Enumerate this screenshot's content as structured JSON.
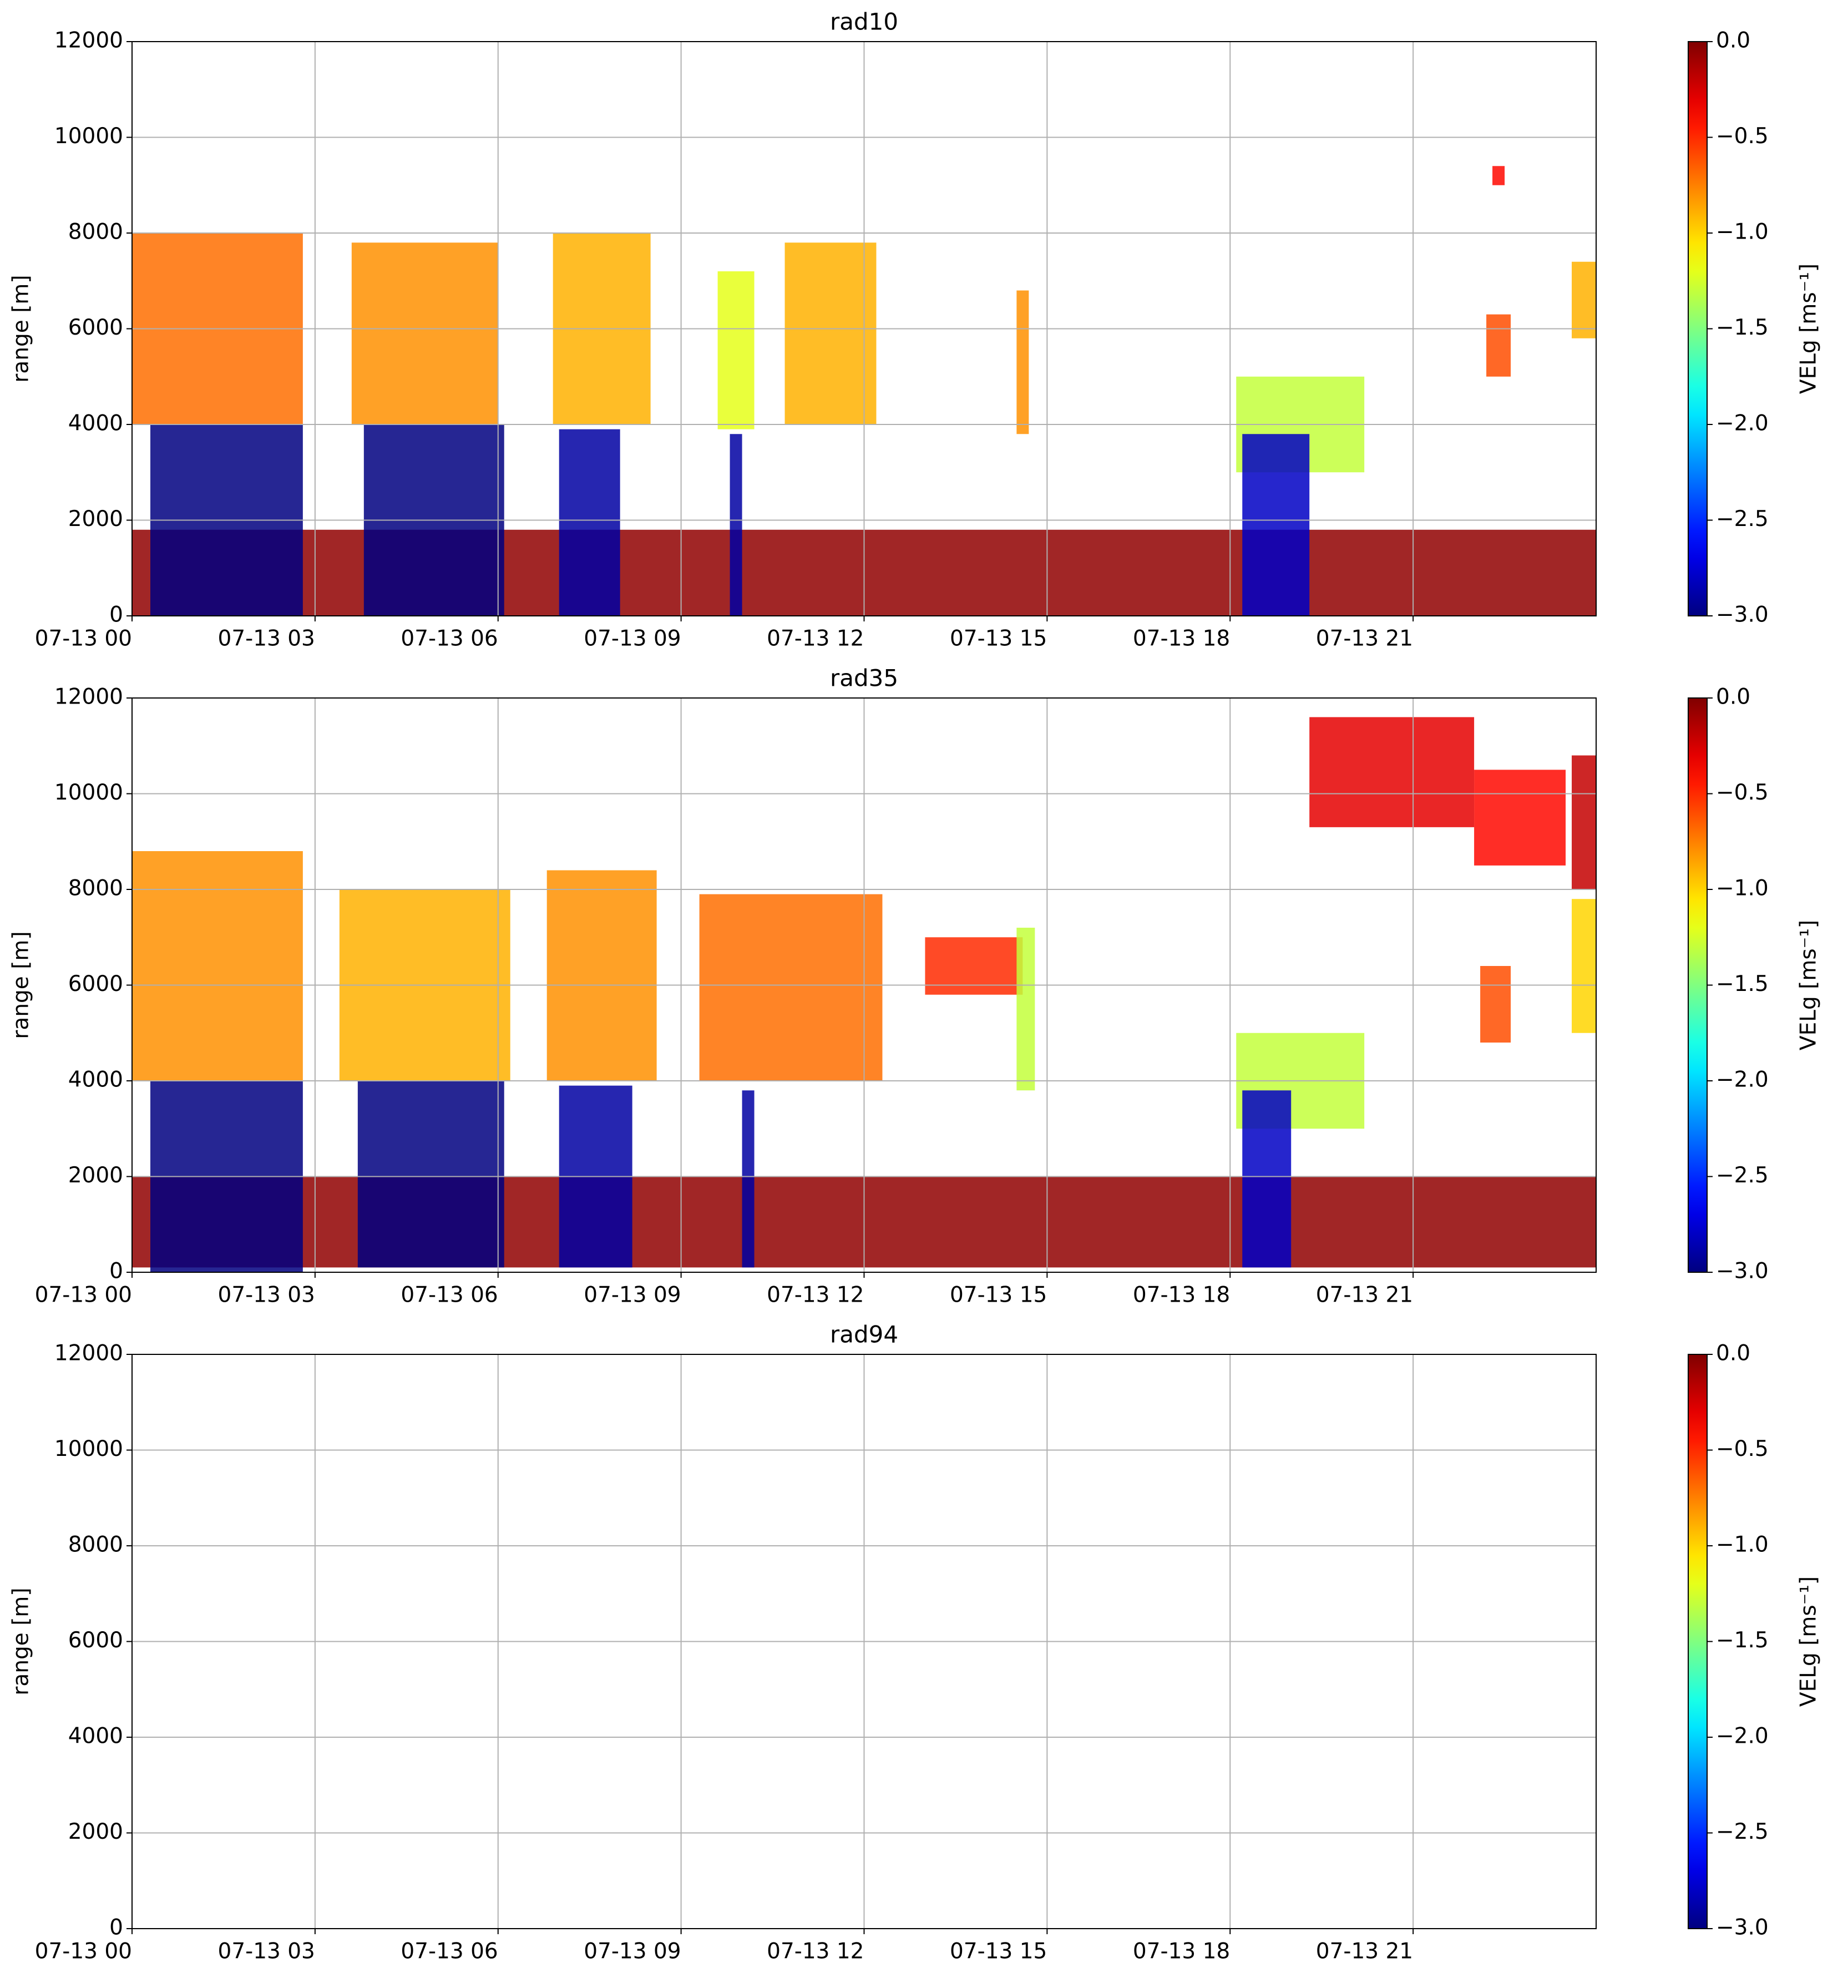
{
  "chart_data": [
    {
      "type": "heatmap",
      "title": "rad10",
      "ylabel": "range [m]",
      "grid": true,
      "xlim": [
        0,
        24
      ],
      "xticks": [
        {
          "value": 0,
          "label": "07-13 00"
        },
        {
          "value": 3,
          "label": "07-13 03"
        },
        {
          "value": 6,
          "label": "07-13 06"
        },
        {
          "value": 9,
          "label": "07-13 09"
        },
        {
          "value": 12,
          "label": "07-13 12"
        },
        {
          "value": 15,
          "label": "07-13 15"
        },
        {
          "value": 18,
          "label": "07-13 18"
        },
        {
          "value": 21,
          "label": "07-13 21"
        }
      ],
      "ylim": [
        0,
        12000
      ],
      "yticks": [
        0,
        2000,
        4000,
        6000,
        8000,
        10000,
        12000
      ],
      "colorbar": {
        "label": "VELg [ms⁻¹]",
        "colormap": "jet",
        "clim": [
          -3,
          0
        ],
        "ticks": [
          {
            "value": 0,
            "label": "0.0"
          },
          {
            "value": -0.5,
            "label": "−0.5"
          },
          {
            "value": -1,
            "label": "−1.0"
          },
          {
            "value": -1.5,
            "label": "−1.5"
          },
          {
            "value": -2,
            "label": "−2.0"
          },
          {
            "value": -2.5,
            "label": "−2.5"
          },
          {
            "value": -3,
            "label": "−3.0"
          }
        ]
      },
      "cells": [
        {
          "x": [
            0,
            24
          ],
          "y": [
            0,
            1800
          ],
          "value": -0.05
        },
        {
          "x": [
            0,
            2.8
          ],
          "y": [
            4000,
            8000
          ],
          "value": -0.7
        },
        {
          "x": [
            0.3,
            2.8
          ],
          "y": [
            0,
            4000
          ],
          "value": -3
        },
        {
          "x": [
            3.6,
            6
          ],
          "y": [
            4000,
            7800
          ],
          "value": -0.8
        },
        {
          "x": [
            3.8,
            6.1
          ],
          "y": [
            0,
            4000
          ],
          "value": -3
        },
        {
          "x": [
            6.9,
            8.5
          ],
          "y": [
            4000,
            8000
          ],
          "value": -0.9
        },
        {
          "x": [
            7,
            8
          ],
          "y": [
            0,
            3900
          ],
          "value": -2.9
        },
        {
          "x": [
            9.6,
            10.2
          ],
          "y": [
            3900,
            7200
          ],
          "value": -1.2
        },
        {
          "x": [
            9.8,
            10
          ],
          "y": [
            0,
            3800
          ],
          "value": -2.9
        },
        {
          "x": [
            10.7,
            12.2
          ],
          "y": [
            4000,
            7800
          ],
          "value": -0.9
        },
        {
          "x": [
            14.5,
            14.7
          ],
          "y": [
            3800,
            6800
          ],
          "value": -0.8
        },
        {
          "x": [
            18.1,
            20.2
          ],
          "y": [
            3000,
            5000
          ],
          "value": -1.3
        },
        {
          "x": [
            18.2,
            19.3
          ],
          "y": [
            0,
            3800
          ],
          "value": -2.8
        },
        {
          "x": [
            22.2,
            22.6
          ],
          "y": [
            5000,
            6300
          ],
          "value": -0.6
        },
        {
          "x": [
            22.3,
            22.5
          ],
          "y": [
            9000,
            9400
          ],
          "value": -0.4
        },
        {
          "x": [
            23.6,
            24
          ],
          "y": [
            5800,
            7400
          ],
          "value": -0.9
        }
      ]
    },
    {
      "type": "heatmap",
      "title": "rad35",
      "ylabel": "range [m]",
      "grid": true,
      "xlim": [
        0,
        24
      ],
      "xticks": [
        {
          "value": 0,
          "label": "07-13 00"
        },
        {
          "value": 3,
          "label": "07-13 03"
        },
        {
          "value": 6,
          "label": "07-13 06"
        },
        {
          "value": 9,
          "label": "07-13 09"
        },
        {
          "value": 12,
          "label": "07-13 12"
        },
        {
          "value": 15,
          "label": "07-13 15"
        },
        {
          "value": 18,
          "label": "07-13 18"
        },
        {
          "value": 21,
          "label": "07-13 21"
        }
      ],
      "ylim": [
        0,
        12000
      ],
      "yticks": [
        0,
        2000,
        4000,
        6000,
        8000,
        10000,
        12000
      ],
      "colorbar": {
        "label": "VELg [ms⁻¹]",
        "colormap": "jet",
        "clim": [
          -3,
          0
        ],
        "ticks": [
          {
            "value": 0,
            "label": "0.0"
          },
          {
            "value": -0.5,
            "label": "−0.5"
          },
          {
            "value": -1,
            "label": "−1.0"
          },
          {
            "value": -1.5,
            "label": "−1.5"
          },
          {
            "value": -2,
            "label": "−2.0"
          },
          {
            "value": -2.5,
            "label": "−2.5"
          },
          {
            "value": -3,
            "label": "−3.0"
          }
        ]
      },
      "cells": [
        {
          "x": [
            0,
            24
          ],
          "y": [
            100,
            2000
          ],
          "value": -0.05
        },
        {
          "x": [
            0,
            2.8
          ],
          "y": [
            4000,
            8800
          ],
          "value": -0.8
        },
        {
          "x": [
            0.3,
            2.8
          ],
          "y": [
            0,
            4000
          ],
          "value": -3
        },
        {
          "x": [
            3.4,
            6.2
          ],
          "y": [
            4000,
            8000
          ],
          "value": -0.9
        },
        {
          "x": [
            3.7,
            6.1
          ],
          "y": [
            100,
            4000
          ],
          "value": -3
        },
        {
          "x": [
            6.8,
            8.6
          ],
          "y": [
            4000,
            8400
          ],
          "value": -0.8
        },
        {
          "x": [
            7,
            8.2
          ],
          "y": [
            100,
            3900
          ],
          "value": -2.9
        },
        {
          "x": [
            9.3,
            12.3
          ],
          "y": [
            4000,
            7900
          ],
          "value": -0.7
        },
        {
          "x": [
            10,
            10.2
          ],
          "y": [
            100,
            3800
          ],
          "value": -2.9
        },
        {
          "x": [
            13,
            14.6
          ],
          "y": [
            5800,
            7000
          ],
          "value": -0.5
        },
        {
          "x": [
            14.5,
            14.8
          ],
          "y": [
            3800,
            7200
          ],
          "value": -1.3
        },
        {
          "x": [
            18.1,
            20.2
          ],
          "y": [
            3000,
            5000
          ],
          "value": -1.3
        },
        {
          "x": [
            18.2,
            19
          ],
          "y": [
            100,
            3800
          ],
          "value": -2.8
        },
        {
          "x": [
            19.3,
            22
          ],
          "y": [
            9300,
            11600
          ],
          "value": -0.3
        },
        {
          "x": [
            22,
            23.5
          ],
          "y": [
            8500,
            10500
          ],
          "value": -0.4
        },
        {
          "x": [
            23.6,
            24
          ],
          "y": [
            8000,
            10800
          ],
          "value": -0.2
        },
        {
          "x": [
            22.1,
            22.6
          ],
          "y": [
            4800,
            6400
          ],
          "value": -0.6
        },
        {
          "x": [
            23.6,
            24
          ],
          "y": [
            5000,
            7800
          ],
          "value": -1
        }
      ]
    },
    {
      "type": "heatmap",
      "title": "rad94",
      "ylabel": "range [m]",
      "grid": true,
      "xlim": [
        0,
        24
      ],
      "xticks": [
        {
          "value": 0,
          "label": "07-13 00"
        },
        {
          "value": 3,
          "label": "07-13 03"
        },
        {
          "value": 6,
          "label": "07-13 06"
        },
        {
          "value": 9,
          "label": "07-13 09"
        },
        {
          "value": 12,
          "label": "07-13 12"
        },
        {
          "value": 15,
          "label": "07-13 15"
        },
        {
          "value": 18,
          "label": "07-13 18"
        },
        {
          "value": 21,
          "label": "07-13 21"
        }
      ],
      "ylim": [
        0,
        12000
      ],
      "yticks": [
        0,
        2000,
        4000,
        6000,
        8000,
        10000,
        12000
      ],
      "colorbar": {
        "label": "VELg [ms⁻¹]",
        "colormap": "jet",
        "clim": [
          -3,
          0
        ],
        "ticks": [
          {
            "value": 0,
            "label": "0.0"
          },
          {
            "value": -0.5,
            "label": "−0.5"
          },
          {
            "value": -1,
            "label": "−1.0"
          },
          {
            "value": -1.5,
            "label": "−1.5"
          },
          {
            "value": -2,
            "label": "−2.0"
          },
          {
            "value": -2.5,
            "label": "−2.5"
          },
          {
            "value": -3,
            "label": "−3.0"
          }
        ]
      },
      "cells": []
    }
  ]
}
